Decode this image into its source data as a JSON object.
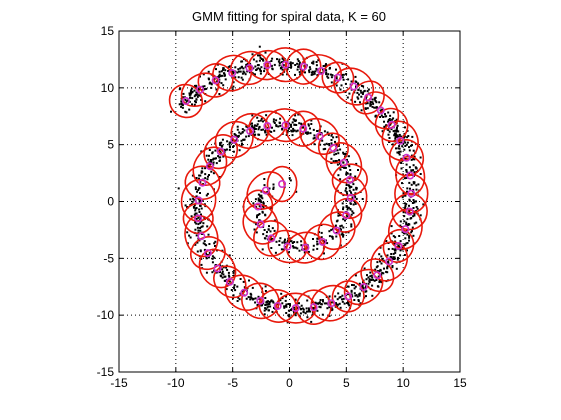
{
  "chart_data": {
    "type": "scatter",
    "title": "GMM fitting for spiral data, K = 60",
    "xlabel": "",
    "ylabel": "",
    "xlim": [
      -15,
      15
    ],
    "ylim": [
      -15,
      15
    ],
    "xticks": [
      -15,
      -10,
      -5,
      0,
      5,
      10,
      15
    ],
    "yticks": [
      -15,
      -10,
      -5,
      0,
      5,
      10,
      15
    ],
    "xtick_labels": [
      "-15",
      "-10",
      "-5",
      "0",
      "5",
      "10",
      "15"
    ],
    "ytick_labels": [
      "-15",
      "-10",
      "-5",
      "0",
      "5",
      "10",
      "15"
    ],
    "grid": true,
    "grid_style": "dotted",
    "series": [
      {
        "kind": "data-points",
        "marker": "dot",
        "color": "#000000",
        "spiral": {
          "theta_range": [
            1.5,
            15.0
          ],
          "radius_per_radian": 0.85,
          "noise": 0.65,
          "count": 1800
        }
      },
      {
        "kind": "component-means",
        "count": 60,
        "marker": "circle",
        "color": "#cc33cc"
      },
      {
        "kind": "component-ellipses",
        "count": 60,
        "color": "#e8190c"
      }
    ],
    "colors": {
      "points": "#000000",
      "means": "#cc33cc",
      "ellipses": "#e8190c",
      "grid": "#000000",
      "axes": "#000000"
    }
  }
}
